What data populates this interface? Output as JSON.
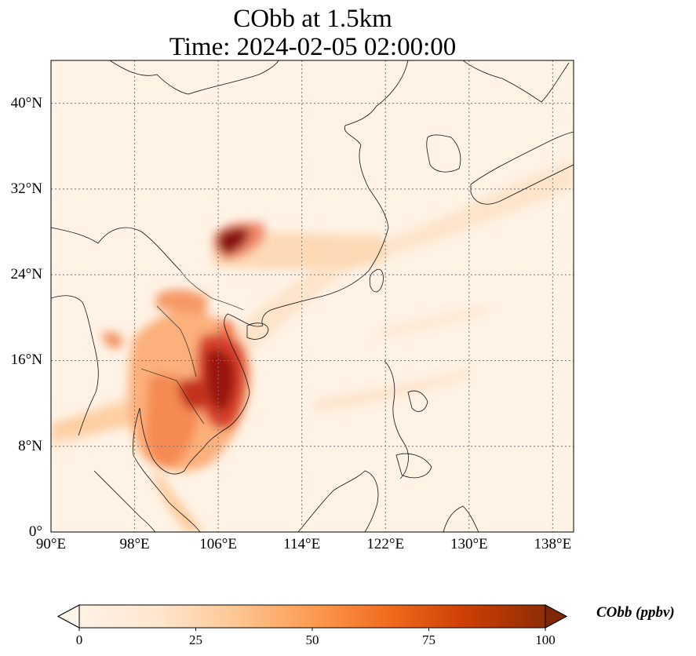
{
  "title": "CObb at 1.5km",
  "subtitle": "Time: 2024-02-05 02:00:00",
  "map": {
    "lon_range": [
      90,
      140
    ],
    "lat_range": [
      0,
      44
    ],
    "x_ticks": [
      {
        "value": 90,
        "label": "90°E"
      },
      {
        "value": 98,
        "label": "98°E"
      },
      {
        "value": 106,
        "label": "106°E"
      },
      {
        "value": 114,
        "label": "114°E"
      },
      {
        "value": 122,
        "label": "122°E"
      },
      {
        "value": 130,
        "label": "130°E"
      },
      {
        "value": 138,
        "label": "138°E"
      }
    ],
    "y_ticks": [
      {
        "value": 0,
        "label": "0°"
      },
      {
        "value": 8,
        "label": "8°N"
      },
      {
        "value": 16,
        "label": "16°N"
      },
      {
        "value": 24,
        "label": "24°N"
      },
      {
        "value": 32,
        "label": "32°N"
      },
      {
        "value": 40,
        "label": "40°N"
      }
    ],
    "gridlines": true
  },
  "colorbar": {
    "label": "CObb (ppbv)",
    "range": [
      0,
      100
    ],
    "ticks": [
      {
        "value": 0,
        "label": "0"
      },
      {
        "value": 25,
        "label": "25"
      },
      {
        "value": 50,
        "label": "50"
      },
      {
        "value": 75,
        "label": "75"
      },
      {
        "value": 100,
        "label": "100"
      }
    ],
    "extend": "both",
    "colors": [
      "#fff5eb",
      "#fdd9b4",
      "#fda762",
      "#f16913",
      "#c03a03",
      "#7f2704"
    ]
  }
}
